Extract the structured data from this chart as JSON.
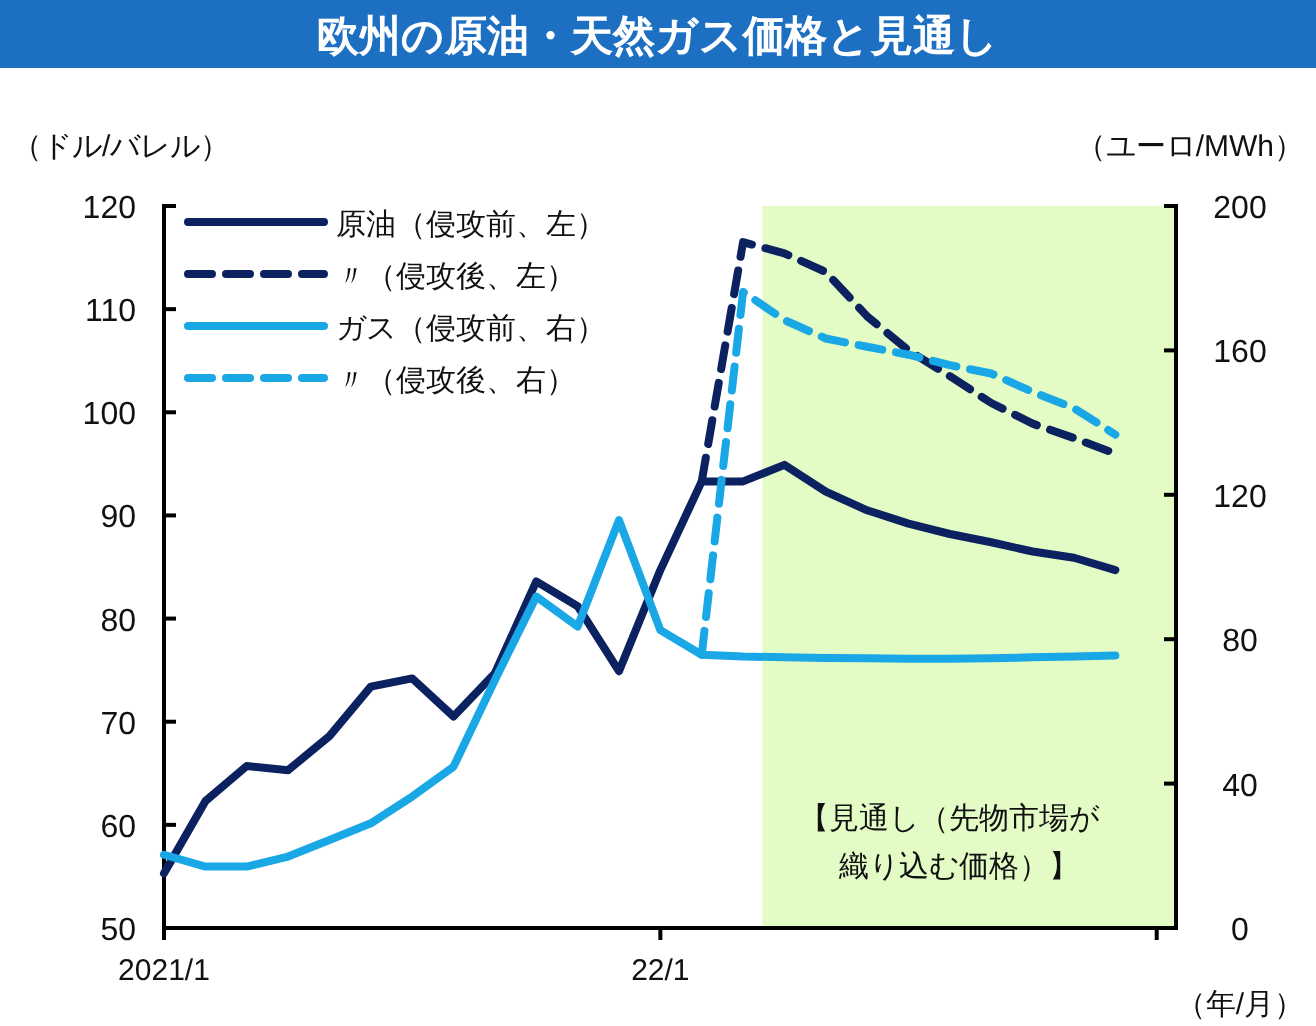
{
  "chart_data": {
    "type": "line",
    "title": "欧州の原油・天然ガス価格と見通し",
    "ylabel": "（ドル/バレル）",
    "y2label": "（ユーロ/MWh）",
    "xlabel": "（年/月）",
    "xlim": [
      "2021-01",
      "2023-01-15"
    ],
    "xticks": [
      {
        "value": "2021-01",
        "label": "2021/1"
      },
      {
        "value": "2022-01",
        "label": "22/1"
      },
      {
        "value": "2023-01",
        "label": null
      }
    ],
    "ylim": [
      50,
      120
    ],
    "yticks": [
      50,
      60,
      70,
      80,
      90,
      100,
      110,
      120
    ],
    "y2lim": [
      0,
      200
    ],
    "y2ticks": [
      0,
      40,
      80,
      120,
      160,
      200
    ],
    "grid": false,
    "legend": "top left",
    "bands": [
      {
        "axis": "x",
        "from": "2022-03-15",
        "to": "2023-01-15",
        "color": "#e3fbc5",
        "label": "【見通し（先物市場が織り込む価格）】"
      }
    ],
    "series": [
      {
        "name": "原油（侵攻前、左）",
        "color": "#0b2160",
        "line_style": "solid",
        "x": [
          "2021-01",
          "2021-02",
          "2021-03",
          "2021-04",
          "2021-05",
          "2021-06",
          "2021-07",
          "2021-08",
          "2021-09",
          "2021-10",
          "2021-11",
          "2021-12",
          "2022-01",
          "2022-02",
          "2022-03",
          "2022-04",
          "2022-05",
          "2022-06",
          "2022-07",
          "2022-08",
          "2022-09",
          "2022-10",
          "2022-11",
          "2022-12"
        ],
        "values": [
          55.3,
          62.3,
          65.7,
          65.3,
          68.6,
          73.4,
          74.2,
          70.5,
          74.7,
          83.6,
          81.2,
          74.9,
          84.7,
          93.3,
          93.3,
          94.9,
          92.3,
          90.5,
          89.2,
          88.2,
          87.4,
          86.5,
          85.9,
          84.7
        ]
      },
      {
        "name": "〃（侵攻後、左）",
        "color": "#0b2160",
        "line_style": "dashed",
        "x": [
          "2022-02",
          "2022-03",
          "2022-04",
          "2022-05",
          "2022-06",
          "2022-07",
          "2022-08",
          "2022-09",
          "2022-10",
          "2022-11",
          "2022-12"
        ],
        "values": [
          93.3,
          116.5,
          115.4,
          113.6,
          109.3,
          106.0,
          103.5,
          100.9,
          98.9,
          97.5,
          96.0
        ]
      },
      {
        "name": "ガス（侵攻前、右）",
        "color": "#1aa7e6",
        "line_style": "solid",
        "axis": "y2",
        "x": [
          "2021-01",
          "2021-02",
          "2021-03",
          "2021-04",
          "2021-05",
          "2021-06",
          "2021-07",
          "2021-08",
          "2021-09",
          "2021-10",
          "2021-11",
          "2021-12",
          "2022-01",
          "2022-02",
          "2022-03",
          "2022-04",
          "2022-05",
          "2022-06",
          "2022-07",
          "2022-08",
          "2022-09",
          "2022-10",
          "2022-11",
          "2022-12"
        ],
        "values": [
          20.3,
          17.0,
          17.0,
          19.8,
          24.4,
          29.0,
          36.4,
          44.7,
          68.7,
          91.8,
          83.5,
          113,
          82.5,
          75.7,
          75.2,
          75.0,
          74.8,
          74.7,
          74.6,
          74.6,
          74.7,
          75.0,
          75.2,
          75.5
        ]
      },
      {
        "name": "〃（侵攻後、右）",
        "color": "#1aa7e6",
        "line_style": "dashed",
        "axis": "y2",
        "x": [
          "2022-02",
          "2022-03",
          "2022-04",
          "2022-05",
          "2022-06",
          "2022-07",
          "2022-08",
          "2022-09",
          "2022-10",
          "2022-11",
          "2022-12"
        ],
        "values": [
          75.7,
          176.2,
          168.4,
          163.3,
          161.0,
          158.8,
          155.9,
          153.6,
          148.5,
          144.0,
          136.7
        ]
      }
    ]
  }
}
